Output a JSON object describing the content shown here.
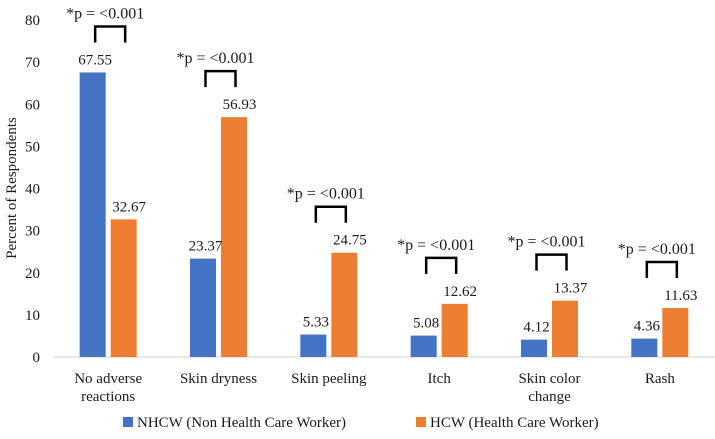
{
  "chart_data": {
    "type": "bar",
    "title": "",
    "xlabel": "",
    "ylabel": "Percent of Respondents",
    "ylim": [
      0,
      80
    ],
    "yticks": [
      0,
      10,
      20,
      30,
      40,
      50,
      60,
      70,
      80
    ],
    "grid": false,
    "legend_position": "bottom",
    "categories": [
      [
        "No adverse",
        "reactions"
      ],
      [
        "Skin dryness"
      ],
      [
        "Skin peeling"
      ],
      [
        "Itch"
      ],
      [
        "Skin color",
        "change"
      ],
      [
        "Rash"
      ]
    ],
    "series": [
      {
        "name": "NHCW (Non Health Care Worker)",
        "color": "#4472C4",
        "values": [
          67.55,
          23.37,
          5.33,
          5.08,
          4.12,
          4.36
        ],
        "labels": [
          "67.55",
          "23.37",
          "5.33",
          "5.08",
          "4.12",
          "4.36"
        ]
      },
      {
        "name": "HCW (Health Care Worker)",
        "color": "#ED7D31",
        "values": [
          32.67,
          56.93,
          24.75,
          12.62,
          13.37,
          11.63
        ],
        "labels": [
          "32.67",
          "56.93",
          "24.75",
          "12.62",
          "13.37",
          "11.63"
        ]
      }
    ],
    "annotations": [
      "*p = <0.001",
      "*p = <0.001",
      "*p = <0.001",
      "*p = <0.001",
      "*p = <0.001",
      "*p = <0.001"
    ]
  }
}
